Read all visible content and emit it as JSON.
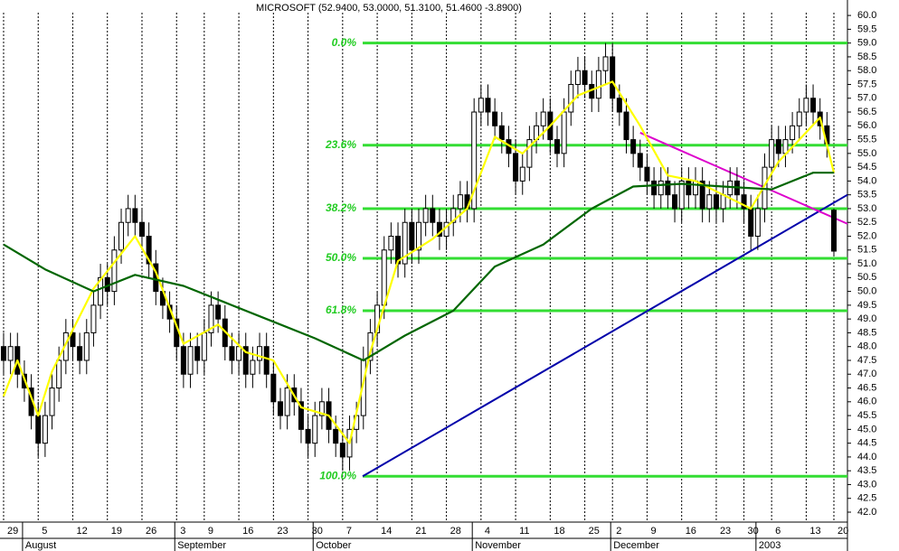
{
  "chart_data": {
    "type": "candlestick",
    "title": "MICROSOFT (52.9400, 53.0000, 51.3100, 51.4600 -3.8900)",
    "xlim": [
      -0.52,
      121.96
    ],
    "ylim": [
      41.64,
      60.56
    ],
    "xticks": [
      {
        "value": 0,
        "label": "29"
      },
      {
        "value": 5,
        "label": "5"
      },
      {
        "value": 10,
        "label": "12"
      },
      {
        "value": 15,
        "label": "19"
      },
      {
        "value": 20,
        "label": "26"
      },
      {
        "value": 25,
        "label": "3"
      },
      {
        "value": 29,
        "label": "9"
      },
      {
        "value": 34,
        "label": "16"
      },
      {
        "value": 39,
        "label": "23"
      },
      {
        "value": 44,
        "label": "30"
      },
      {
        "value": 49,
        "label": "7"
      },
      {
        "value": 54,
        "label": "14"
      },
      {
        "value": 59,
        "label": "21"
      },
      {
        "value": 64,
        "label": "28"
      },
      {
        "value": 69,
        "label": "4"
      },
      {
        "value": 74,
        "label": "11"
      },
      {
        "value": 79,
        "label": "18"
      },
      {
        "value": 84,
        "label": "25"
      },
      {
        "value": 88,
        "label": "2"
      },
      {
        "value": 93,
        "label": "9"
      },
      {
        "value": 98,
        "label": "16"
      },
      {
        "value": 103,
        "label": "23"
      },
      {
        "value": 107,
        "label": "30"
      },
      {
        "value": 111,
        "label": "6"
      },
      {
        "value": 116,
        "label": "13"
      },
      {
        "value": 120,
        "label": "20"
      }
    ],
    "month_ticks": [
      {
        "value": 3,
        "label": "August"
      },
      {
        "value": 25,
        "label": "September"
      },
      {
        "value": 45,
        "label": "October"
      },
      {
        "value": 68,
        "label": "November"
      },
      {
        "value": 88,
        "label": "December"
      },
      {
        "value": 109,
        "label": "2003"
      }
    ],
    "yticks": [
      {
        "value": 42,
        "label": "42.0"
      },
      {
        "value": 42.5,
        "label": "42.5"
      },
      {
        "value": 43,
        "label": "43.0"
      },
      {
        "value": 43.5,
        "label": "43.5"
      },
      {
        "value": 44,
        "label": "44.0"
      },
      {
        "value": 44.5,
        "label": "44.5"
      },
      {
        "value": 45,
        "label": "45.0"
      },
      {
        "value": 45.5,
        "label": "45.5"
      },
      {
        "value": 46,
        "label": "46.0"
      },
      {
        "value": 46.5,
        "label": "46.5"
      },
      {
        "value": 47,
        "label": "47.0"
      },
      {
        "value": 47.5,
        "label": "47.5"
      },
      {
        "value": 48,
        "label": "48.0"
      },
      {
        "value": 48.5,
        "label": "48.5"
      },
      {
        "value": 49,
        "label": "49.0"
      },
      {
        "value": 49.5,
        "label": "49.5"
      },
      {
        "value": 50,
        "label": "50.0"
      },
      {
        "value": 50.5,
        "label": "50.5"
      },
      {
        "value": 51,
        "label": "51.0"
      },
      {
        "value": 51.5,
        "label": "51.5"
      },
      {
        "value": 52,
        "label": "52.0"
      },
      {
        "value": 52.5,
        "label": "52.5"
      },
      {
        "value": 53,
        "label": "53.0"
      },
      {
        "value": 53.5,
        "label": "53.5"
      },
      {
        "value": 54,
        "label": "54.0"
      },
      {
        "value": 54.5,
        "label": "54.5"
      },
      {
        "value": 55,
        "label": "55.0"
      },
      {
        "value": 55.5,
        "label": "55.5"
      },
      {
        "value": 56,
        "label": "56.0"
      },
      {
        "value": 56.5,
        "label": "56.5"
      },
      {
        "value": 57,
        "label": "57.0"
      },
      {
        "value": 57.5,
        "label": "57.5"
      },
      {
        "value": 58,
        "label": "58.0"
      },
      {
        "value": 58.5,
        "label": "58.5"
      },
      {
        "value": 59,
        "label": "59.0"
      },
      {
        "value": 59.5,
        "label": "59.5"
      },
      {
        "value": 60,
        "label": "60.0"
      }
    ],
    "candles": {
      "x": [
        0,
        1,
        2,
        3,
        4,
        5,
        6,
        7,
        8,
        9,
        10,
        11,
        12,
        13,
        14,
        15,
        16,
        17,
        18,
        19,
        20,
        21,
        22,
        23,
        24,
        25,
        26,
        27,
        28,
        29,
        30,
        31,
        32,
        33,
        34,
        35,
        36,
        37,
        38,
        39,
        40,
        41,
        42,
        43,
        44,
        45,
        46,
        47,
        48,
        49,
        50,
        51,
        52,
        53,
        54,
        55,
        56,
        57,
        58,
        59,
        60,
        61,
        62,
        63,
        64,
        65,
        66,
        67,
        68,
        69,
        70,
        71,
        72,
        73,
        74,
        75,
        76,
        77,
        78,
        79,
        80,
        81,
        82,
        83,
        84,
        85,
        86,
        87,
        88,
        89,
        90,
        91,
        92,
        93,
        94,
        95,
        96,
        97,
        98,
        99,
        100,
        101,
        102,
        103,
        104,
        105,
        106,
        107,
        108,
        109,
        110,
        111,
        112,
        113,
        114,
        115,
        116,
        117,
        118,
        119,
        120
      ],
      "open": [
        48.0,
        47.5,
        48.0,
        47.0,
        46.5,
        45.5,
        44.5,
        45.5,
        46.5,
        47.5,
        48.5,
        48.0,
        47.5,
        48.5,
        49.5,
        50.5,
        50.0,
        51.5,
        52.5,
        53.0,
        52.5,
        52.0,
        51.0,
        50.0,
        49.5,
        49.0,
        48.0,
        47.0,
        48.0,
        47.5,
        48.5,
        49.5,
        49.0,
        48.0,
        47.5,
        48.0,
        47.0,
        47.5,
        48.0,
        47.0,
        46.0,
        45.5,
        46.5,
        46.0,
        45.0,
        44.5,
        45.5,
        46.0,
        45.0,
        44.5,
        44.0,
        45.0,
        45.5,
        47.5,
        48.5,
        49.5,
        51.5,
        52.0,
        51.0,
        52.5,
        51.5,
        52.5,
        53.0,
        52.5,
        52.0,
        52.5,
        53.0,
        53.5,
        53.0,
        56.5,
        57.0,
        56.5,
        56.0,
        55.5,
        55.0,
        54.0,
        54.5,
        55.5,
        56.0,
        56.5,
        55.5,
        55.0,
        56.5,
        57.5,
        58.0,
        57.5,
        57.0,
        58.0,
        58.5,
        57.0,
        56.5,
        55.5,
        55.0,
        54.5,
        54.0,
        53.5,
        54.0,
        53.5,
        53.0,
        54.0,
        53.5,
        54.0,
        53.0,
        53.5,
        53.0,
        53.5,
        54.0,
        53.5,
        53.0,
        52.0,
        53.0,
        54.5,
        55.5,
        55.0,
        55.5,
        56.0,
        56.5,
        57.0,
        56.5,
        56.0,
        52.94
      ],
      "high": [
        48.5,
        48.5,
        48.5,
        47.5,
        47.0,
        46.0,
        46.0,
        47.0,
        48.0,
        49.0,
        49.0,
        48.5,
        49.0,
        50.0,
        51.0,
        51.0,
        52.0,
        53.0,
        53.5,
        53.5,
        53.0,
        52.5,
        51.5,
        50.5,
        50.0,
        49.5,
        48.5,
        48.5,
        48.5,
        49.0,
        50.0,
        50.0,
        49.5,
        48.5,
        48.5,
        48.5,
        48.0,
        48.5,
        48.5,
        47.5,
        46.5,
        47.0,
        47.0,
        46.5,
        45.5,
        46.0,
        46.5,
        46.5,
        45.5,
        45.0,
        45.5,
        46.0,
        48.0,
        49.0,
        50.0,
        52.0,
        52.5,
        52.5,
        53.0,
        53.0,
        53.0,
        53.5,
        53.5,
        53.0,
        53.0,
        53.5,
        54.0,
        54.0,
        57.0,
        57.5,
        57.5,
        57.0,
        56.5,
        56.0,
        55.5,
        55.0,
        56.0,
        56.5,
        57.0,
        57.0,
        56.0,
        57.0,
        58.0,
        58.5,
        58.5,
        58.0,
        58.5,
        59.0,
        59.0,
        57.5,
        57.0,
        56.0,
        55.5,
        55.0,
        54.5,
        54.5,
        54.5,
        54.0,
        54.5,
        54.5,
        54.5,
        54.5,
        54.0,
        54.0,
        54.0,
        54.5,
        54.5,
        54.0,
        53.5,
        53.5,
        55.0,
        56.0,
        56.0,
        56.0,
        56.5,
        57.0,
        57.5,
        57.5,
        57.0,
        56.5,
        53.0
      ],
      "low": [
        47.0,
        47.0,
        46.5,
        46.0,
        45.0,
        44.0,
        44.0,
        45.0,
        46.0,
        47.0,
        47.5,
        47.0,
        47.0,
        48.0,
        49.0,
        49.5,
        49.5,
        51.0,
        52.0,
        52.0,
        51.5,
        50.5,
        49.5,
        49.0,
        48.5,
        47.5,
        46.5,
        46.5,
        47.0,
        47.0,
        48.0,
        48.5,
        47.5,
        47.0,
        47.0,
        46.5,
        46.5,
        47.0,
        46.5,
        45.5,
        45.0,
        45.0,
        45.5,
        44.5,
        44.0,
        44.0,
        45.0,
        44.5,
        44.0,
        43.5,
        43.5,
        44.5,
        45.0,
        47.0,
        48.0,
        49.0,
        51.0,
        50.5,
        50.5,
        51.0,
        51.0,
        52.0,
        52.0,
        51.5,
        51.5,
        52.0,
        52.5,
        52.5,
        52.5,
        56.0,
        56.0,
        55.5,
        55.0,
        54.5,
        53.5,
        53.5,
        54.0,
        55.0,
        55.5,
        55.0,
        54.5,
        54.5,
        56.0,
        57.0,
        57.0,
        56.5,
        56.5,
        57.5,
        56.5,
        56.0,
        55.0,
        54.5,
        54.0,
        53.5,
        53.0,
        53.0,
        53.0,
        52.5,
        52.5,
        53.0,
        53.0,
        52.5,
        52.5,
        52.5,
        52.5,
        53.0,
        53.0,
        52.5,
        51.5,
        51.5,
        52.5,
        54.0,
        54.5,
        54.5,
        55.0,
        55.5,
        56.0,
        56.0,
        55.5,
        54.85,
        51.31
      ],
      "close": [
        47.5,
        48.0,
        47.0,
        46.5,
        45.5,
        44.5,
        45.5,
        46.5,
        47.5,
        48.5,
        48.0,
        47.5,
        48.5,
        49.5,
        50.5,
        50.0,
        51.5,
        52.5,
        53.0,
        52.5,
        52.0,
        51.0,
        50.0,
        49.5,
        49.0,
        48.0,
        47.0,
        48.0,
        47.5,
        48.5,
        49.5,
        49.0,
        48.0,
        47.5,
        48.0,
        47.0,
        47.5,
        48.0,
        47.0,
        46.0,
        45.5,
        46.5,
        46.0,
        45.0,
        44.5,
        45.5,
        46.0,
        45.0,
        44.5,
        44.0,
        45.0,
        45.5,
        47.5,
        48.5,
        49.5,
        51.5,
        52.0,
        51.0,
        52.5,
        51.5,
        52.5,
        53.0,
        52.5,
        52.0,
        52.5,
        53.0,
        53.5,
        53.0,
        56.5,
        57.0,
        56.5,
        56.0,
        55.5,
        55.0,
        54.0,
        54.5,
        55.5,
        56.0,
        56.5,
        55.5,
        55.0,
        56.5,
        57.5,
        58.0,
        57.5,
        57.0,
        58.0,
        58.5,
        57.0,
        56.5,
        55.5,
        55.0,
        54.5,
        54.0,
        53.5,
        54.0,
        53.5,
        53.0,
        54.0,
        53.5,
        54.0,
        53.0,
        53.5,
        53.0,
        53.5,
        54.0,
        53.5,
        53.0,
        52.0,
        53.0,
        54.5,
        55.5,
        55.0,
        55.5,
        56.0,
        56.5,
        57.0,
        56.5,
        56.0,
        55.35,
        51.46
      ],
      "up_color": "#ffffff",
      "down_color": "#000000"
    },
    "lines": [
      {
        "color": "#ffff00",
        "x": [
          0,
          2,
          5,
          7,
          13,
          19,
          22,
          26,
          31,
          35,
          39,
          43,
          47,
          50,
          53,
          57,
          62,
          67,
          71,
          75,
          79,
          83,
          88,
          92,
          96,
          100,
          104,
          108,
          112,
          115,
          118,
          120
        ],
        "values": [
          46.2,
          47.5,
          45.5,
          47.1,
          50.1,
          52.0,
          50.7,
          48.1,
          48.8,
          47.8,
          47.5,
          45.8,
          45.5,
          44.5,
          47.8,
          51.1,
          51.9,
          53.0,
          55.6,
          55.0,
          56.0,
          57.1,
          57.6,
          56.0,
          54.2,
          54.0,
          53.5,
          53.0,
          54.7,
          55.5,
          56.3,
          54.3
        ]
      },
      {
        "color": "#006600",
        "x": [
          0,
          6,
          13,
          19,
          26,
          32,
          39,
          45,
          52,
          58,
          65,
          71,
          78,
          85,
          91,
          98,
          104,
          111,
          117,
          120
        ],
        "values": [
          51.7,
          50.8,
          50.0,
          50.6,
          50.2,
          49.6,
          48.9,
          48.3,
          47.5,
          48.4,
          49.3,
          50.9,
          51.7,
          53.0,
          53.8,
          53.9,
          53.8,
          53.7,
          54.3,
          54.3
        ]
      }
    ],
    "trendlines": [
      {
        "color": "#0000aa",
        "x": [
          51.9,
          121.96
        ],
        "values": [
          43.3,
          53.5
        ]
      },
      {
        "color": "#dd00cc",
        "x": [
          92,
          121.96
        ],
        "values": [
          55.75,
          52.45
        ]
      }
    ],
    "fibonacci": {
      "color": "#33dd33",
      "x_start": 51.9,
      "levels": [
        {
          "label": "0.0%",
          "value": 59.0
        },
        {
          "label": "23.6%",
          "value": 55.3
        },
        {
          "label": "38.2%",
          "value": 53.0
        },
        {
          "label": "50.0%",
          "value": 51.2
        },
        {
          "label": "61.8%",
          "value": 49.3
        },
        {
          "label": "100.0%",
          "value": 43.3
        }
      ]
    }
  }
}
